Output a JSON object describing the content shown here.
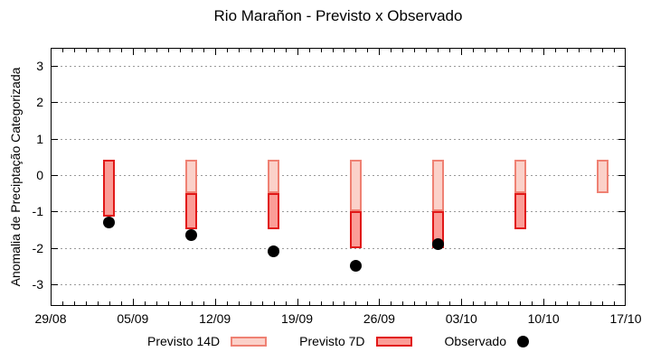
{
  "title": "Rio Marañon - Previsto x Observado",
  "chart_data": {
    "type": "bar",
    "title": "Rio Marañon - Previsto x Observado",
    "xlabel": "",
    "ylabel": "Anomalia de Preciptação Categorizada",
    "x_tick_labels": [
      "29/08",
      "05/09",
      "12/09",
      "19/09",
      "26/09",
      "03/10",
      "10/10",
      "17/10"
    ],
    "x_tick_days": [
      0,
      7,
      14,
      21,
      28,
      35,
      42,
      49
    ],
    "x_minor_interval_days": 1,
    "xlim_days": [
      0,
      49
    ],
    "y_ticks": [
      -3,
      -2,
      -1,
      0,
      1,
      2,
      3
    ],
    "ylim": [
      -3.6,
      3.5
    ],
    "grid": "horizontal-dotted",
    "grid_color": "#9a9a9a",
    "legend_position": "bottom",
    "series": [
      {
        "name": "Previsto 14D",
        "type": "range-bar",
        "fill": "#fbd1c9",
        "border": "#ef8173",
        "points": [
          {
            "date": "10/09",
            "day": 12,
            "high": 0.43,
            "low": -0.5
          },
          {
            "date": "17/09",
            "day": 19,
            "high": 0.43,
            "low": -0.5
          },
          {
            "date": "24/09",
            "day": 26,
            "high": 0.43,
            "low": -1.0
          },
          {
            "date": "01/10",
            "day": 33,
            "high": 0.43,
            "low": -1.0
          },
          {
            "date": "08/10",
            "day": 40,
            "high": 0.43,
            "low": -0.5
          },
          {
            "date": "15/10",
            "day": 47,
            "high": 0.43,
            "low": -0.5
          }
        ]
      },
      {
        "name": "Previsto 7D",
        "type": "range-bar",
        "fill": "#fb9d97",
        "border": "#e11818",
        "points": [
          {
            "date": "03/09",
            "day": 5,
            "high": 0.43,
            "low": -1.15
          },
          {
            "date": "10/09",
            "day": 12,
            "high": -0.5,
            "low": -1.5
          },
          {
            "date": "17/09",
            "day": 19,
            "high": -0.5,
            "low": -1.5
          },
          {
            "date": "24/09",
            "day": 26,
            "high": -1.0,
            "low": -2.0
          },
          {
            "date": "01/10",
            "day": 33,
            "high": -1.0,
            "low": -2.0
          },
          {
            "date": "08/10",
            "day": 40,
            "high": -0.5,
            "low": -1.5
          }
        ]
      },
      {
        "name": "Observado",
        "type": "scatter",
        "color": "#000000",
        "points": [
          {
            "date": "03/09",
            "day": 5,
            "value": -1.3
          },
          {
            "date": "10/09",
            "day": 12,
            "value": -1.65
          },
          {
            "date": "17/09",
            "day": 19,
            "value": -2.1
          },
          {
            "date": "24/09",
            "day": 26,
            "value": -2.5
          },
          {
            "date": "01/10",
            "day": 33,
            "value": -1.9
          }
        ]
      }
    ]
  }
}
